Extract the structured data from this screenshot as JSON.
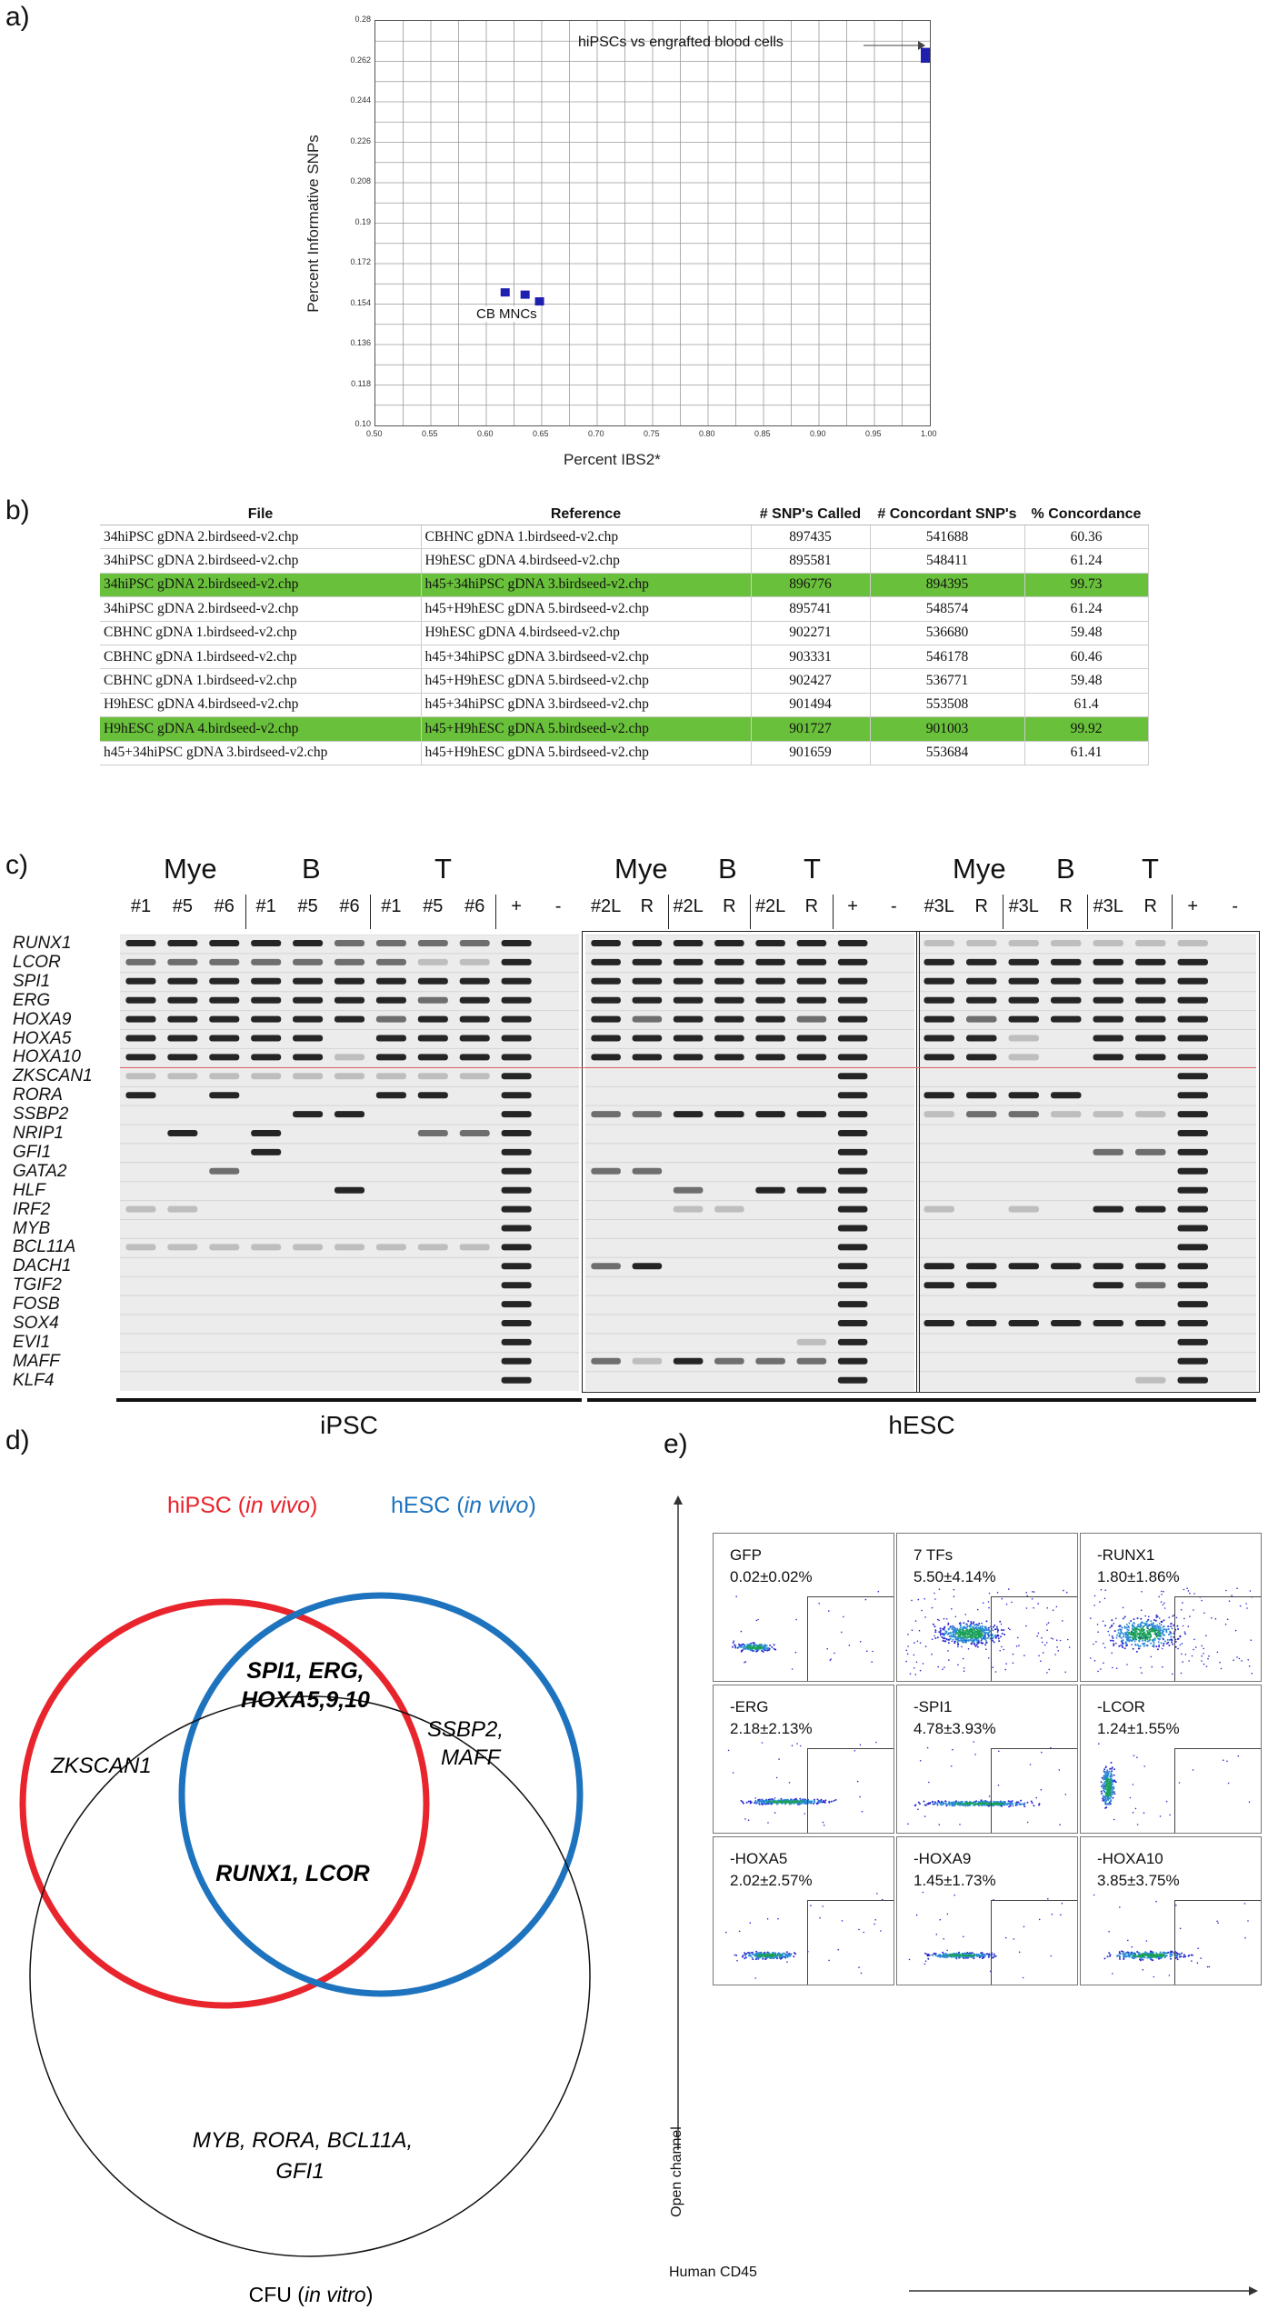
{
  "panel_labels": {
    "a": "a)",
    "b": "b)",
    "c": "c)",
    "d": "d)",
    "e": "e)"
  },
  "panel_a": {
    "y_title": "Percent Informative SNPs",
    "x_title": "Percent IBS2*",
    "annotation_top": "hiPSCs vs engrafted blood cells",
    "annotation_bottom": "CB MNCs",
    "y_ticks": [
      "0.28",
      "0.262",
      "0.244",
      "0.226",
      "0.208",
      "0.19",
      "0.172",
      "0.154",
      "0.136",
      "0.118",
      "0.10"
    ],
    "x_ticks": [
      "0.50",
      "0.55",
      "0.60",
      "0.65",
      "0.70",
      "0.75",
      "0.80",
      "0.85",
      "0.90",
      "0.95",
      "1.00"
    ],
    "marker_color": "#1f1fb0"
  },
  "chart_data": {
    "type": "scatter",
    "xlabel": "Percent IBS2*",
    "ylabel": "Percent Informative SNPs",
    "xlim": [
      0.5,
      1.0
    ],
    "ylim": [
      0.1,
      0.28
    ],
    "grid": true,
    "series": [
      {
        "name": "CB MNCs",
        "x": [
          0.617,
          0.635,
          0.648
        ],
        "y": [
          0.159,
          0.158,
          0.155
        ]
      },
      {
        "name": "hiPSCs vs engrafted blood cells",
        "x": [
          0.998,
          0.998
        ],
        "y": [
          0.266,
          0.263
        ]
      }
    ]
  },
  "panel_b": {
    "headers": [
      "File",
      "Reference",
      "# SNP's Called",
      "# Concordant SNP's",
      "% Concordance"
    ],
    "highlight_color": "#69c03a",
    "rows": [
      {
        "file": "34hiPSC gDNA 2.birdseed-v2.chp",
        "reference": "CBHNC gDNA 1.birdseed-v2.chp",
        "called": "897435",
        "concordant": "541688",
        "pct": "60.36",
        "hl": false
      },
      {
        "file": "34hiPSC gDNA 2.birdseed-v2.chp",
        "reference": "H9hESC gDNA 4.birdseed-v2.chp",
        "called": "895581",
        "concordant": "548411",
        "pct": "61.24",
        "hl": false
      },
      {
        "file": "34hiPSC gDNA 2.birdseed-v2.chp",
        "reference": "h45+34hiPSC gDNA 3.birdseed-v2.chp",
        "called": "896776",
        "concordant": "894395",
        "pct": "99.73",
        "hl": true
      },
      {
        "file": "34hiPSC gDNA 2.birdseed-v2.chp",
        "reference": "h45+H9hESC gDNA 5.birdseed-v2.chp",
        "called": "895741",
        "concordant": "548574",
        "pct": "61.24",
        "hl": false
      },
      {
        "file": "CBHNC gDNA 1.birdseed-v2.chp",
        "reference": "H9hESC gDNA 4.birdseed-v2.chp",
        "called": "902271",
        "concordant": "536680",
        "pct": "59.48",
        "hl": false
      },
      {
        "file": "CBHNC gDNA 1.birdseed-v2.chp",
        "reference": "h45+34hiPSC gDNA 3.birdseed-v2.chp",
        "called": "903331",
        "concordant": "546178",
        "pct": "60.46",
        "hl": false
      },
      {
        "file": "CBHNC gDNA 1.birdseed-v2.chp",
        "reference": "h45+H9hESC gDNA 5.birdseed-v2.chp",
        "called": "902427",
        "concordant": "536771",
        "pct": "59.48",
        "hl": false
      },
      {
        "file": "H9hESC gDNA 4.birdseed-v2.chp",
        "reference": "h45+34hiPSC gDNA 3.birdseed-v2.chp",
        "called": "901494",
        "concordant": "553508",
        "pct": "61.4",
        "hl": false
      },
      {
        "file": "H9hESC gDNA 4.birdseed-v2.chp",
        "reference": "h45+H9hESC gDNA 5.birdseed-v2.chp",
        "called": "901727",
        "concordant": "901003",
        "pct": "99.92",
        "hl": true
      },
      {
        "file": "h45+34hiPSC gDNA 3.birdseed-v2.chp",
        "reference": "h45+H9hESC gDNA 5.birdseed-v2.chp",
        "called": "901659",
        "concordant": "553684",
        "pct": "61.41",
        "hl": false
      }
    ]
  },
  "panel_c": {
    "genes": [
      "RUNX1",
      "LCOR",
      "SPI1",
      "ERG",
      "HOXA9",
      "HOXA5",
      "HOXA10",
      "ZKSCAN1",
      "RORA",
      "SSBP2",
      "NRIP1",
      "GFI1",
      "GATA2",
      "HLF",
      "IRF2",
      "MYB",
      "BCL11A",
      "DACH1",
      "TGIF2",
      "FOSB",
      "SOX4",
      "EVI1",
      "MAFF",
      "KLF4"
    ],
    "conditions": {
      "ipsc": [
        "Mye",
        "B",
        "T"
      ],
      "hesc2": [
        "Mye",
        "B",
        "T"
      ],
      "hesc3": [
        "Mye",
        "B",
        "T"
      ]
    },
    "lanes": {
      "ipsc": [
        "#1",
        "#5",
        "#6",
        "#1",
        "#5",
        "#6",
        "#1",
        "#5",
        "#6",
        "+",
        "-"
      ],
      "hesc2": [
        "#2L",
        "R",
        "#2L",
        "R",
        "#2L",
        "R",
        "+",
        "-"
      ],
      "hesc3": [
        "#3L",
        "R",
        "#3L",
        "R",
        "#3L",
        "R",
        "+",
        "-"
      ]
    },
    "cell_labels": {
      "ipsc": "iPSC",
      "hesc": "hESC"
    },
    "band_color": "#1a1a1a",
    "gel_color": "#ececec"
  },
  "panel_d": {
    "hipsc_prefix": "hiPSC (",
    "hipsc_italic": "in vivo",
    "hipsc_suffix": ")",
    "hesc_prefix": "hESC (",
    "hesc_italic": "in vivo",
    "hesc_suffix": ")",
    "cfu_prefix": "CFU (",
    "cfu_italic": "in vitro",
    "cfu_suffix": ")",
    "overlap_top_1": "SPI1, ERG,",
    "overlap_top_2": "HOXA5,9,10",
    "center": "RUNX1, LCOR",
    "left_only": "ZKSCAN1",
    "right_only_1": "SSBP2,",
    "right_only_2": "MAFF",
    "bottom_1": "MYB, RORA, BCL11A,",
    "bottom_2": "GFI1",
    "hipsc_color": "#e8242c",
    "hesc_color": "#1e73be",
    "cfu_color": "#111111"
  },
  "panel_e": {
    "y_axis": "Open channel",
    "x_axis": "Human CD45",
    "plots": [
      {
        "name": "GFP",
        "pct": "0.02±0.02%"
      },
      {
        "name": "7 TFs",
        "pct": "5.50±4.14%"
      },
      {
        "name": "-RUNX1",
        "pct": "1.80±1.86%"
      },
      {
        "name": "-ERG",
        "pct": "2.18±2.13%"
      },
      {
        "name": "-SPI1",
        "pct": "4.78±3.93%"
      },
      {
        "name": "-LCOR",
        "pct": "1.24±1.55%"
      },
      {
        "name": "-HOXA5",
        "pct": "2.02±2.57%"
      },
      {
        "name": "-HOXA9",
        "pct": "1.45±1.73%"
      },
      {
        "name": "-HOXA10",
        "pct": "3.85±3.75%"
      }
    ]
  }
}
